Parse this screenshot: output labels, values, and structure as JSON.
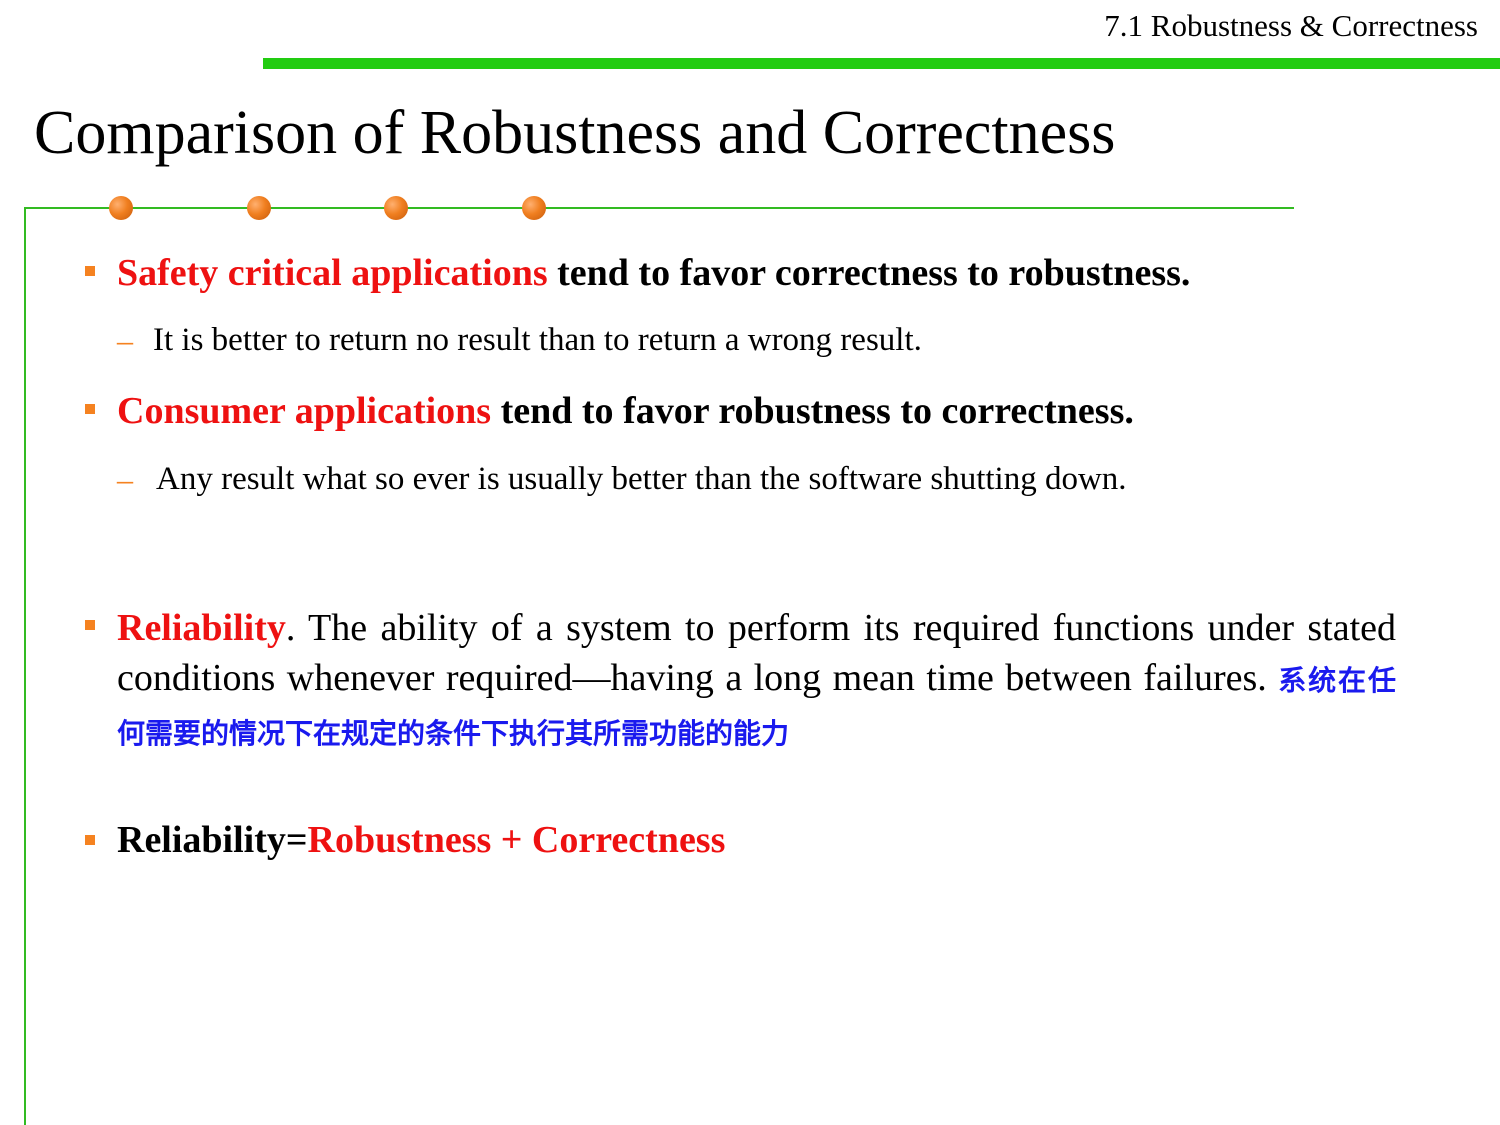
{
  "header": {
    "section_label": "7.1 Robustness & Correctness"
  },
  "title": "Comparison of Robustness and Correctness",
  "colors": {
    "accent_bar": "#22cc11",
    "frame_line": "#33bb22",
    "bullet": "#f58220",
    "highlight_red": "#ee1111",
    "chinese_blue": "#1a1aee"
  },
  "bullets": [
    {
      "highlight": "Safety critical applications",
      "rest": " tend to favor correctness to robustness.",
      "sub": "It is better to return no result than to return a wrong result."
    },
    {
      "highlight": "Consumer applications",
      "rest": " tend to favor robustness to correctness.",
      "sub": "Any result what so ever is usually better than the software shutting down."
    }
  ],
  "reliability": {
    "term": "Reliability",
    "definition": ". The ability of a system to perform its required functions under stated conditions whenever required—having a long mean time between failures. ",
    "chinese": "系统在任何需要的情况下在规定的条件下执行其所需功能的能力"
  },
  "formula": {
    "left": "Reliability=",
    "right": "Robustness + Correctness"
  }
}
